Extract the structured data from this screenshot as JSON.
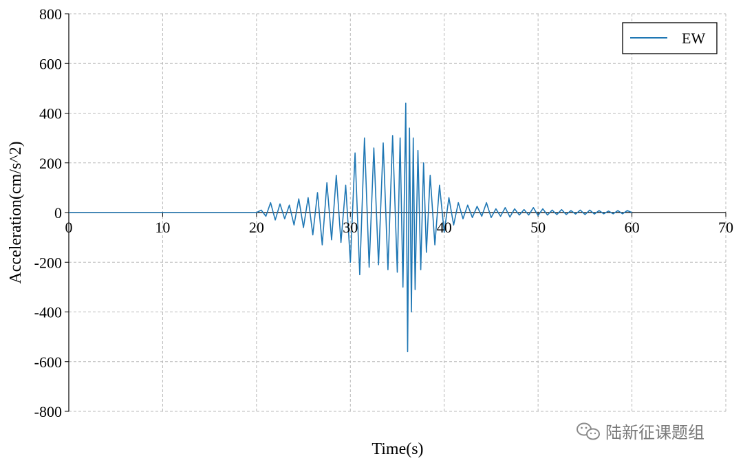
{
  "chart_data": {
    "type": "line",
    "title": "",
    "xlabel": "Time(s)",
    "ylabel": "Acceleration(cm/s^2)",
    "xlim": [
      0,
      70
    ],
    "ylim": [
      -800,
      800
    ],
    "x_ticks": [
      "0",
      "10",
      "20",
      "30",
      "40",
      "50",
      "60",
      "70"
    ],
    "y_ticks": [
      "-800",
      "-600",
      "-400",
      "-200",
      "0",
      "200",
      "400",
      "600",
      "800"
    ],
    "grid": true,
    "legend_position": "top-right",
    "series": [
      {
        "name": "EW",
        "color": "#1f77b4",
        "x": [
          0,
          20,
          20.5,
          21,
          21.5,
          22,
          22.5,
          23,
          23.5,
          24,
          24.5,
          25,
          25.5,
          26,
          26.5,
          27,
          27.5,
          28,
          28.5,
          29,
          29.5,
          30,
          30.5,
          31,
          31.5,
          32,
          32.5,
          33,
          33.5,
          34,
          34.5,
          35,
          35.3,
          35.6,
          35.9,
          36.1,
          36.3,
          36.5,
          36.7,
          36.9,
          37.2,
          37.5,
          37.8,
          38.1,
          38.5,
          39,
          39.5,
          40,
          40.5,
          41,
          41.5,
          42,
          42.5,
          43,
          43.5,
          44,
          44.5,
          45,
          45.5,
          46,
          46.5,
          47,
          47.5,
          48,
          48.5,
          49,
          49.5,
          50,
          50.5,
          51,
          51.5,
          52,
          52.5,
          53,
          53.5,
          54,
          54.5,
          55,
          55.5,
          56,
          56.5,
          57,
          57.5,
          58,
          58.5,
          59,
          59.5,
          60
        ],
        "values": [
          0,
          0,
          10,
          -15,
          40,
          -30,
          35,
          -25,
          30,
          -50,
          55,
          -60,
          60,
          -90,
          80,
          -130,
          120,
          -110,
          150,
          -120,
          110,
          -200,
          240,
          -250,
          300,
          -220,
          260,
          -210,
          280,
          -230,
          310,
          -240,
          300,
          -300,
          440,
          -560,
          340,
          -400,
          300,
          -310,
          250,
          -230,
          200,
          -160,
          150,
          -130,
          110,
          -80,
          60,
          -50,
          40,
          -25,
          30,
          -20,
          25,
          -15,
          40,
          -20,
          15,
          -15,
          20,
          -18,
          15,
          -10,
          12,
          -10,
          20,
          -12,
          15,
          -10,
          10,
          -8,
          12,
          -8,
          8,
          -6,
          10,
          -8,
          10,
          -6,
          8,
          -5,
          6,
          -5,
          8,
          -5,
          8,
          0
        ]
      }
    ]
  },
  "watermark": {
    "icon": "wechat-icon",
    "text": "陆新征课题组"
  }
}
